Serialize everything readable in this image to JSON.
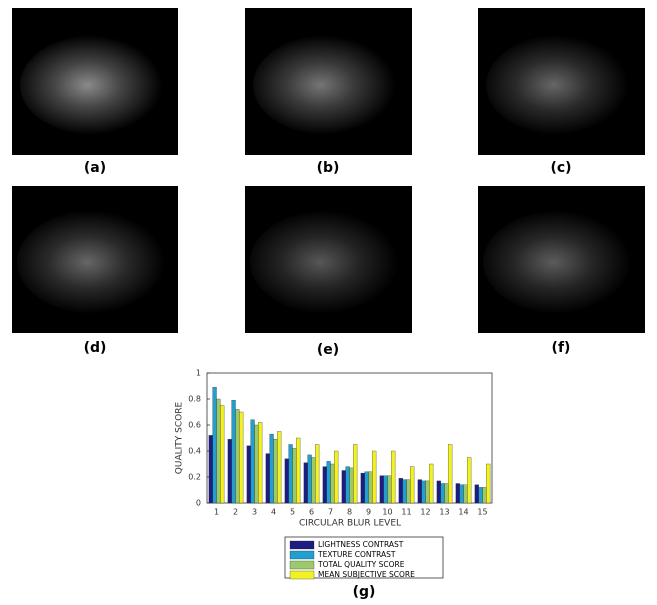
{
  "panels": [
    "(a)",
    "(b)",
    "(c)",
    "(d)",
    "(e)",
    "(f)"
  ],
  "chart_data": {
    "type": "bar",
    "caption": "(g)",
    "xlabel": "CIRCULAR BLUR LEVEL",
    "ylabel": "QUALITY SCORE",
    "categories": [
      "1",
      "2",
      "3",
      "4",
      "5",
      "6",
      "7",
      "8",
      "9",
      "10",
      "11",
      "12",
      "13",
      "14",
      "15"
    ],
    "series": [
      {
        "name": "LIGHTNESS CONTRAST",
        "color": "#1c1c82",
        "values": [
          0.52,
          0.49,
          0.44,
          0.38,
          0.34,
          0.31,
          0.28,
          0.25,
          0.23,
          0.21,
          0.19,
          0.18,
          0.17,
          0.15,
          0.14
        ]
      },
      {
        "name": "TEXTURE CONTRAST",
        "color": "#1f9fd2",
        "values": [
          0.89,
          0.79,
          0.64,
          0.53,
          0.45,
          0.37,
          0.32,
          0.28,
          0.24,
          0.21,
          0.18,
          0.17,
          0.15,
          0.14,
          0.12
        ]
      },
      {
        "name": "TOTAL QUALITY SCORE",
        "color": "#9cc96b",
        "values": [
          0.8,
          0.72,
          0.6,
          0.49,
          0.42,
          0.35,
          0.3,
          0.27,
          0.24,
          0.21,
          0.18,
          0.17,
          0.15,
          0.14,
          0.12
        ]
      },
      {
        "name": "MEAN SUBJECTIVE SCORE",
        "color": "#f2f223",
        "values": [
          0.75,
          0.7,
          0.62,
          0.55,
          0.5,
          0.45,
          0.4,
          0.45,
          0.4,
          0.4,
          0.28,
          0.3,
          0.45,
          0.35,
          0.3
        ]
      }
    ],
    "ylim": [
      0,
      1
    ],
    "yticks": [
      0,
      0.2,
      0.4,
      0.6,
      0.8,
      1
    ],
    "grid": false,
    "legend": "below"
  }
}
